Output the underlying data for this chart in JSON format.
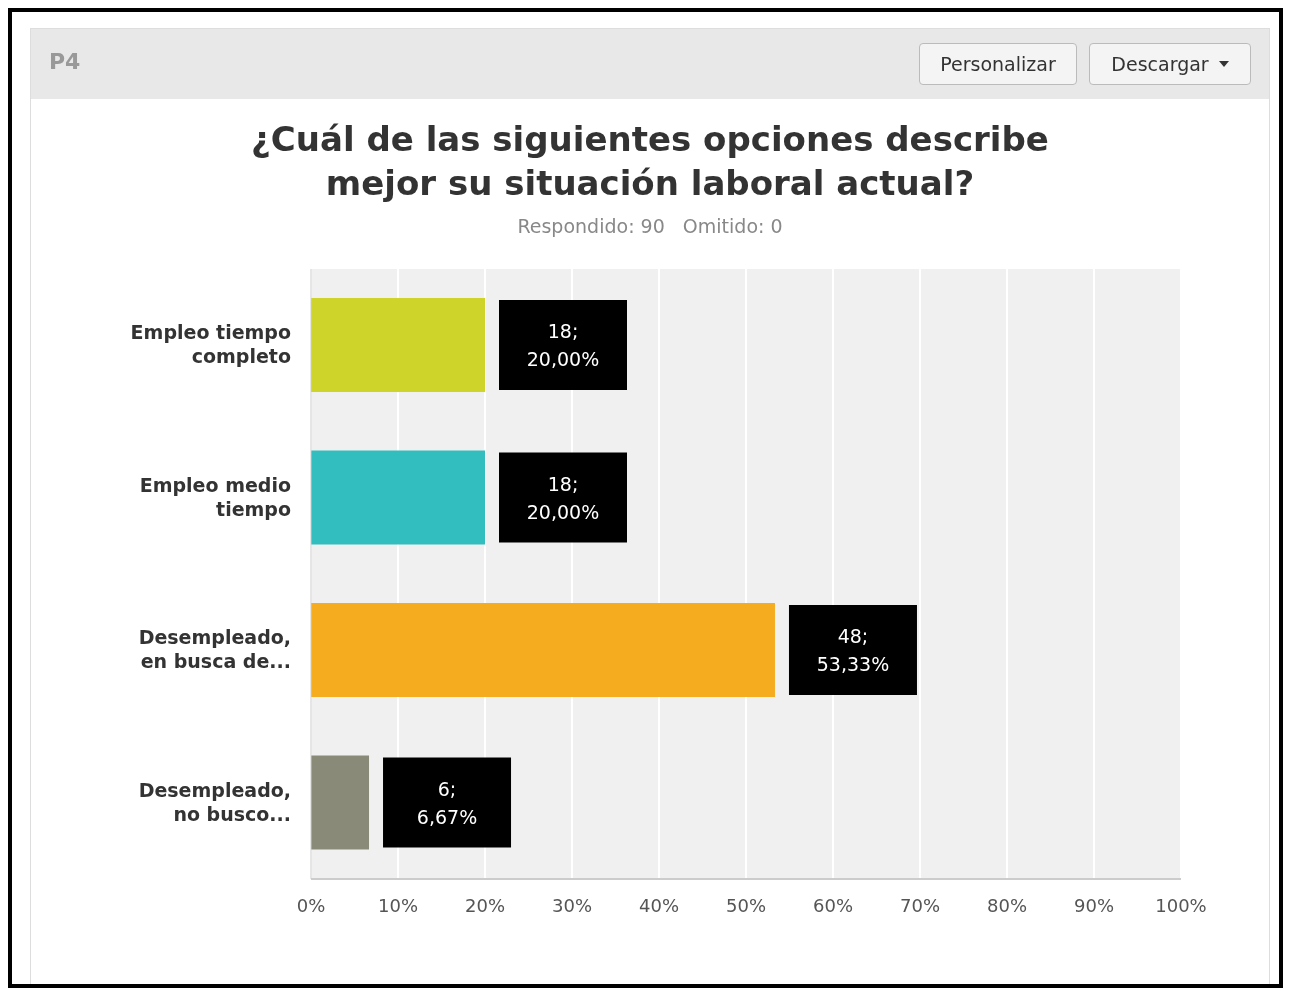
{
  "chart_data": {
    "type": "bar",
    "orientation": "horizontal",
    "title": "¿Cuál de las siguientes opciones describe mejor su situación laboral actual?",
    "subtitle": "Respondido: 90   Omitido: 0",
    "annotations": [
      "P4",
      "Personalizar",
      "Descargar"
    ],
    "categories": [
      "Empleo tiempo completo",
      "Empleo medio tiempo",
      "Desempleado, en busca de...",
      "Desempleado, no busco..."
    ],
    "values": [
      20,
      20,
      53.33,
      6.67
    ],
    "colors": [
      "#cfd42a",
      "#32bdbf",
      "#f5ad1f",
      "#8a8a78"
    ],
    "value_labels": [
      "18; 20,00%",
      "18; 20,00%",
      "48; 53,33%",
      "6; 6,67%"
    ],
    "xlim": [
      0,
      100
    ],
    "xticks": [
      {
        "value": 0,
        "label": "0%"
      },
      {
        "value": 10,
        "label": "10%"
      },
      {
        "value": 20,
        "label": "20%"
      },
      {
        "value": 30,
        "label": "30%"
      },
      {
        "value": 40,
        "label": "40%"
      },
      {
        "value": 50,
        "label": "50%"
      },
      {
        "value": 60,
        "label": "60%"
      },
      {
        "value": 70,
        "label": "70%"
      },
      {
        "value": 80,
        "label": "80%"
      },
      {
        "value": 90,
        "label": "90%"
      },
      {
        "value": 100,
        "label": "100%"
      }
    ],
    "grid": "x",
    "legend": false
  }
}
